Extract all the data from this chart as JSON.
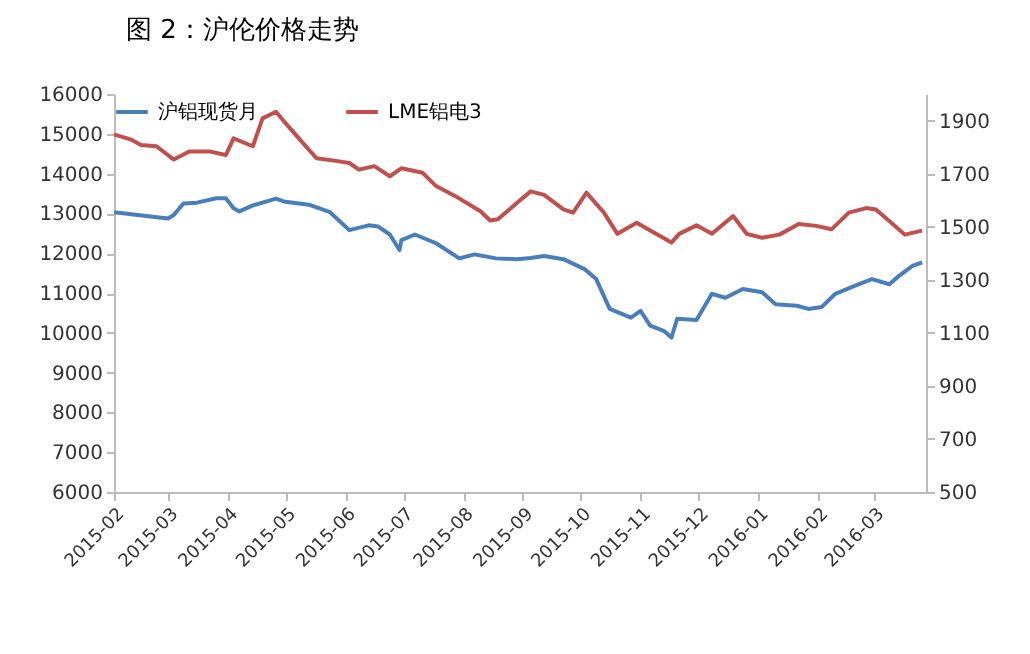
{
  "chart_data": {
    "type": "line",
    "title": "图 2：沪伦价格走势",
    "x": [
      "2015-02-01",
      "2015-02-20",
      "2015-03-01",
      "2015-03-04",
      "2015-03-09",
      "2015-03-16",
      "2015-03-26",
      "2015-03-31",
      "2015-04-04",
      "2015-04-07",
      "2015-04-14",
      "2015-04-26",
      "2015-04-30",
      "2015-05-13",
      "2015-05-24",
      "2015-06-03",
      "2015-06-13",
      "2015-06-18",
      "2015-06-24",
      "2015-06-29",
      "2015-06-30",
      "2015-07-07",
      "2015-07-18",
      "2015-07-30",
      "2015-08-07",
      "2015-08-18",
      "2015-08-29",
      "2015-09-05",
      "2015-09-12",
      "2015-09-22",
      "2015-10-03",
      "2015-10-09",
      "2015-10-16",
      "2015-10-27",
      "2015-11-01",
      "2015-11-06",
      "2015-11-13",
      "2015-11-17",
      "2015-11-20",
      "2015-11-30",
      "2015-12-08",
      "2015-12-15",
      "2015-12-24",
      "2016-01-03",
      "2016-01-10",
      "2016-01-21",
      "2016-01-27",
      "2016-02-03",
      "2016-02-10",
      "2016-02-20",
      "2016-02-29",
      "2016-03-09",
      "2016-03-14",
      "2016-03-21",
      "2016-03-26"
    ],
    "series": [
      {
        "name": "沪铝现货月",
        "color": "#4a7ebb",
        "values": [
          13030,
          12920,
          12870,
          12960,
          13250,
          13270,
          13380,
          13380,
          13130,
          13050,
          13200,
          13370,
          13300,
          13220,
          13030,
          12580,
          12700,
          12670,
          12470,
          12080,
          12330,
          12470,
          12250,
          11870,
          11970,
          11870,
          11850,
          11880,
          11930,
          11850,
          11600,
          11350,
          10600,
          10380,
          10550,
          10180,
          10050,
          9880,
          10350,
          10320,
          10980,
          10880,
          11100,
          11020,
          10720,
          10680,
          10600,
          10650,
          10980,
          11180,
          11350,
          11220,
          11430,
          11680,
          11770
        ]
      },
      {
        "name": "LME铝电3",
        "color": "#c0504d",
        "axis": "y2",
        "x": [
          "2015-02-01",
          "2015-02-10",
          "2015-02-15",
          "2015-02-23",
          "2015-03-04",
          "2015-03-12",
          "2015-03-23",
          "2015-03-31",
          "2015-04-04",
          "2015-04-14",
          "2015-04-19",
          "2015-04-26",
          "2015-04-30",
          "2015-05-10",
          "2015-05-17",
          "2015-05-27",
          "2015-06-03",
          "2015-06-08",
          "2015-06-16",
          "2015-06-24",
          "2015-06-30",
          "2015-07-11",
          "2015-07-18",
          "2015-07-28",
          "2015-08-10",
          "2015-08-15",
          "2015-08-19",
          "2015-08-29",
          "2015-09-05",
          "2015-09-12",
          "2015-09-22",
          "2015-09-27",
          "2015-10-04",
          "2015-10-13",
          "2015-10-20",
          "2015-10-30",
          "2015-11-09",
          "2015-11-17",
          "2015-11-21",
          "2015-11-30",
          "2015-12-08",
          "2015-12-19",
          "2015-12-26",
          "2016-01-03",
          "2016-01-12",
          "2016-01-22",
          "2016-01-31",
          "2016-02-08",
          "2016-02-17",
          "2016-02-26",
          "2016-03-02",
          "2016-03-10",
          "2016-03-17",
          "2016-03-26"
        ],
        "values": [
          1848,
          1828,
          1808,
          1803,
          1753,
          1783,
          1783,
          1770,
          1833,
          1803,
          1908,
          1933,
          1898,
          1815,
          1758,
          1748,
          1740,
          1715,
          1728,
          1690,
          1720,
          1703,
          1653,
          1615,
          1558,
          1523,
          1528,
          1590,
          1633,
          1620,
          1565,
          1553,
          1628,
          1553,
          1473,
          1515,
          1473,
          1440,
          1473,
          1505,
          1473,
          1540,
          1473,
          1458,
          1470,
          1510,
          1503,
          1490,
          1553,
          1570,
          1565,
          1515,
          1470,
          1485
        ]
      }
    ],
    "xlim": [
      "2015-02-01",
      "2016-03-28"
    ],
    "xticks": [
      "2015-02",
      "2015-03",
      "2015-04",
      "2015-05",
      "2015-06",
      "2015-07",
      "2015-08",
      "2015-09",
      "2015-10",
      "2015-11",
      "2015-12",
      "2016-01",
      "2016-02",
      "2016-03"
    ],
    "ylim": [
      6000,
      16000
    ],
    "yticks": [
      6000,
      7000,
      8000,
      9000,
      10000,
      11000,
      12000,
      13000,
      14000,
      15000,
      16000
    ],
    "y2lim": [
      500,
      2000
    ],
    "y2ticks": [
      500,
      700,
      900,
      1100,
      1300,
      1500,
      1700,
      1900
    ],
    "legend": "top",
    "grid": false
  }
}
